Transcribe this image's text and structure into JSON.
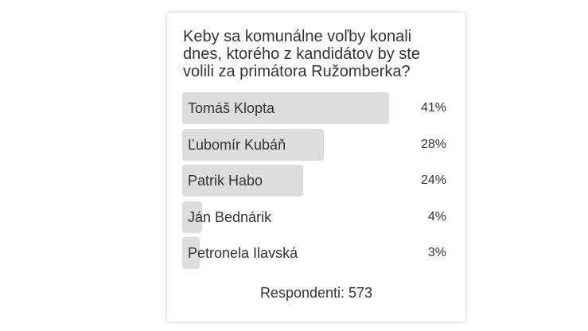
{
  "poll": {
    "question": "Keby sa komunálne voľby konali dnes, ktorého z kandidátov by ste volili za primátora Ružomberka?",
    "options": [
      {
        "label": "Tomáš Klopta",
        "percent_text": "41%",
        "percent": 41
      },
      {
        "label": "Ľubomír Kubáň",
        "percent_text": "28%",
        "percent": 28
      },
      {
        "label": "Patrik Habo",
        "percent_text": "24%",
        "percent": 24
      },
      {
        "label": "Ján Bednárik",
        "percent_text": "4%",
        "percent": 4
      },
      {
        "label": "Petronela Ilavská",
        "percent_text": "3%",
        "percent": 3
      }
    ],
    "respondents_text": "Respondenti: 573"
  },
  "colors": {
    "bar": "#dddddd",
    "text": "#333333"
  }
}
